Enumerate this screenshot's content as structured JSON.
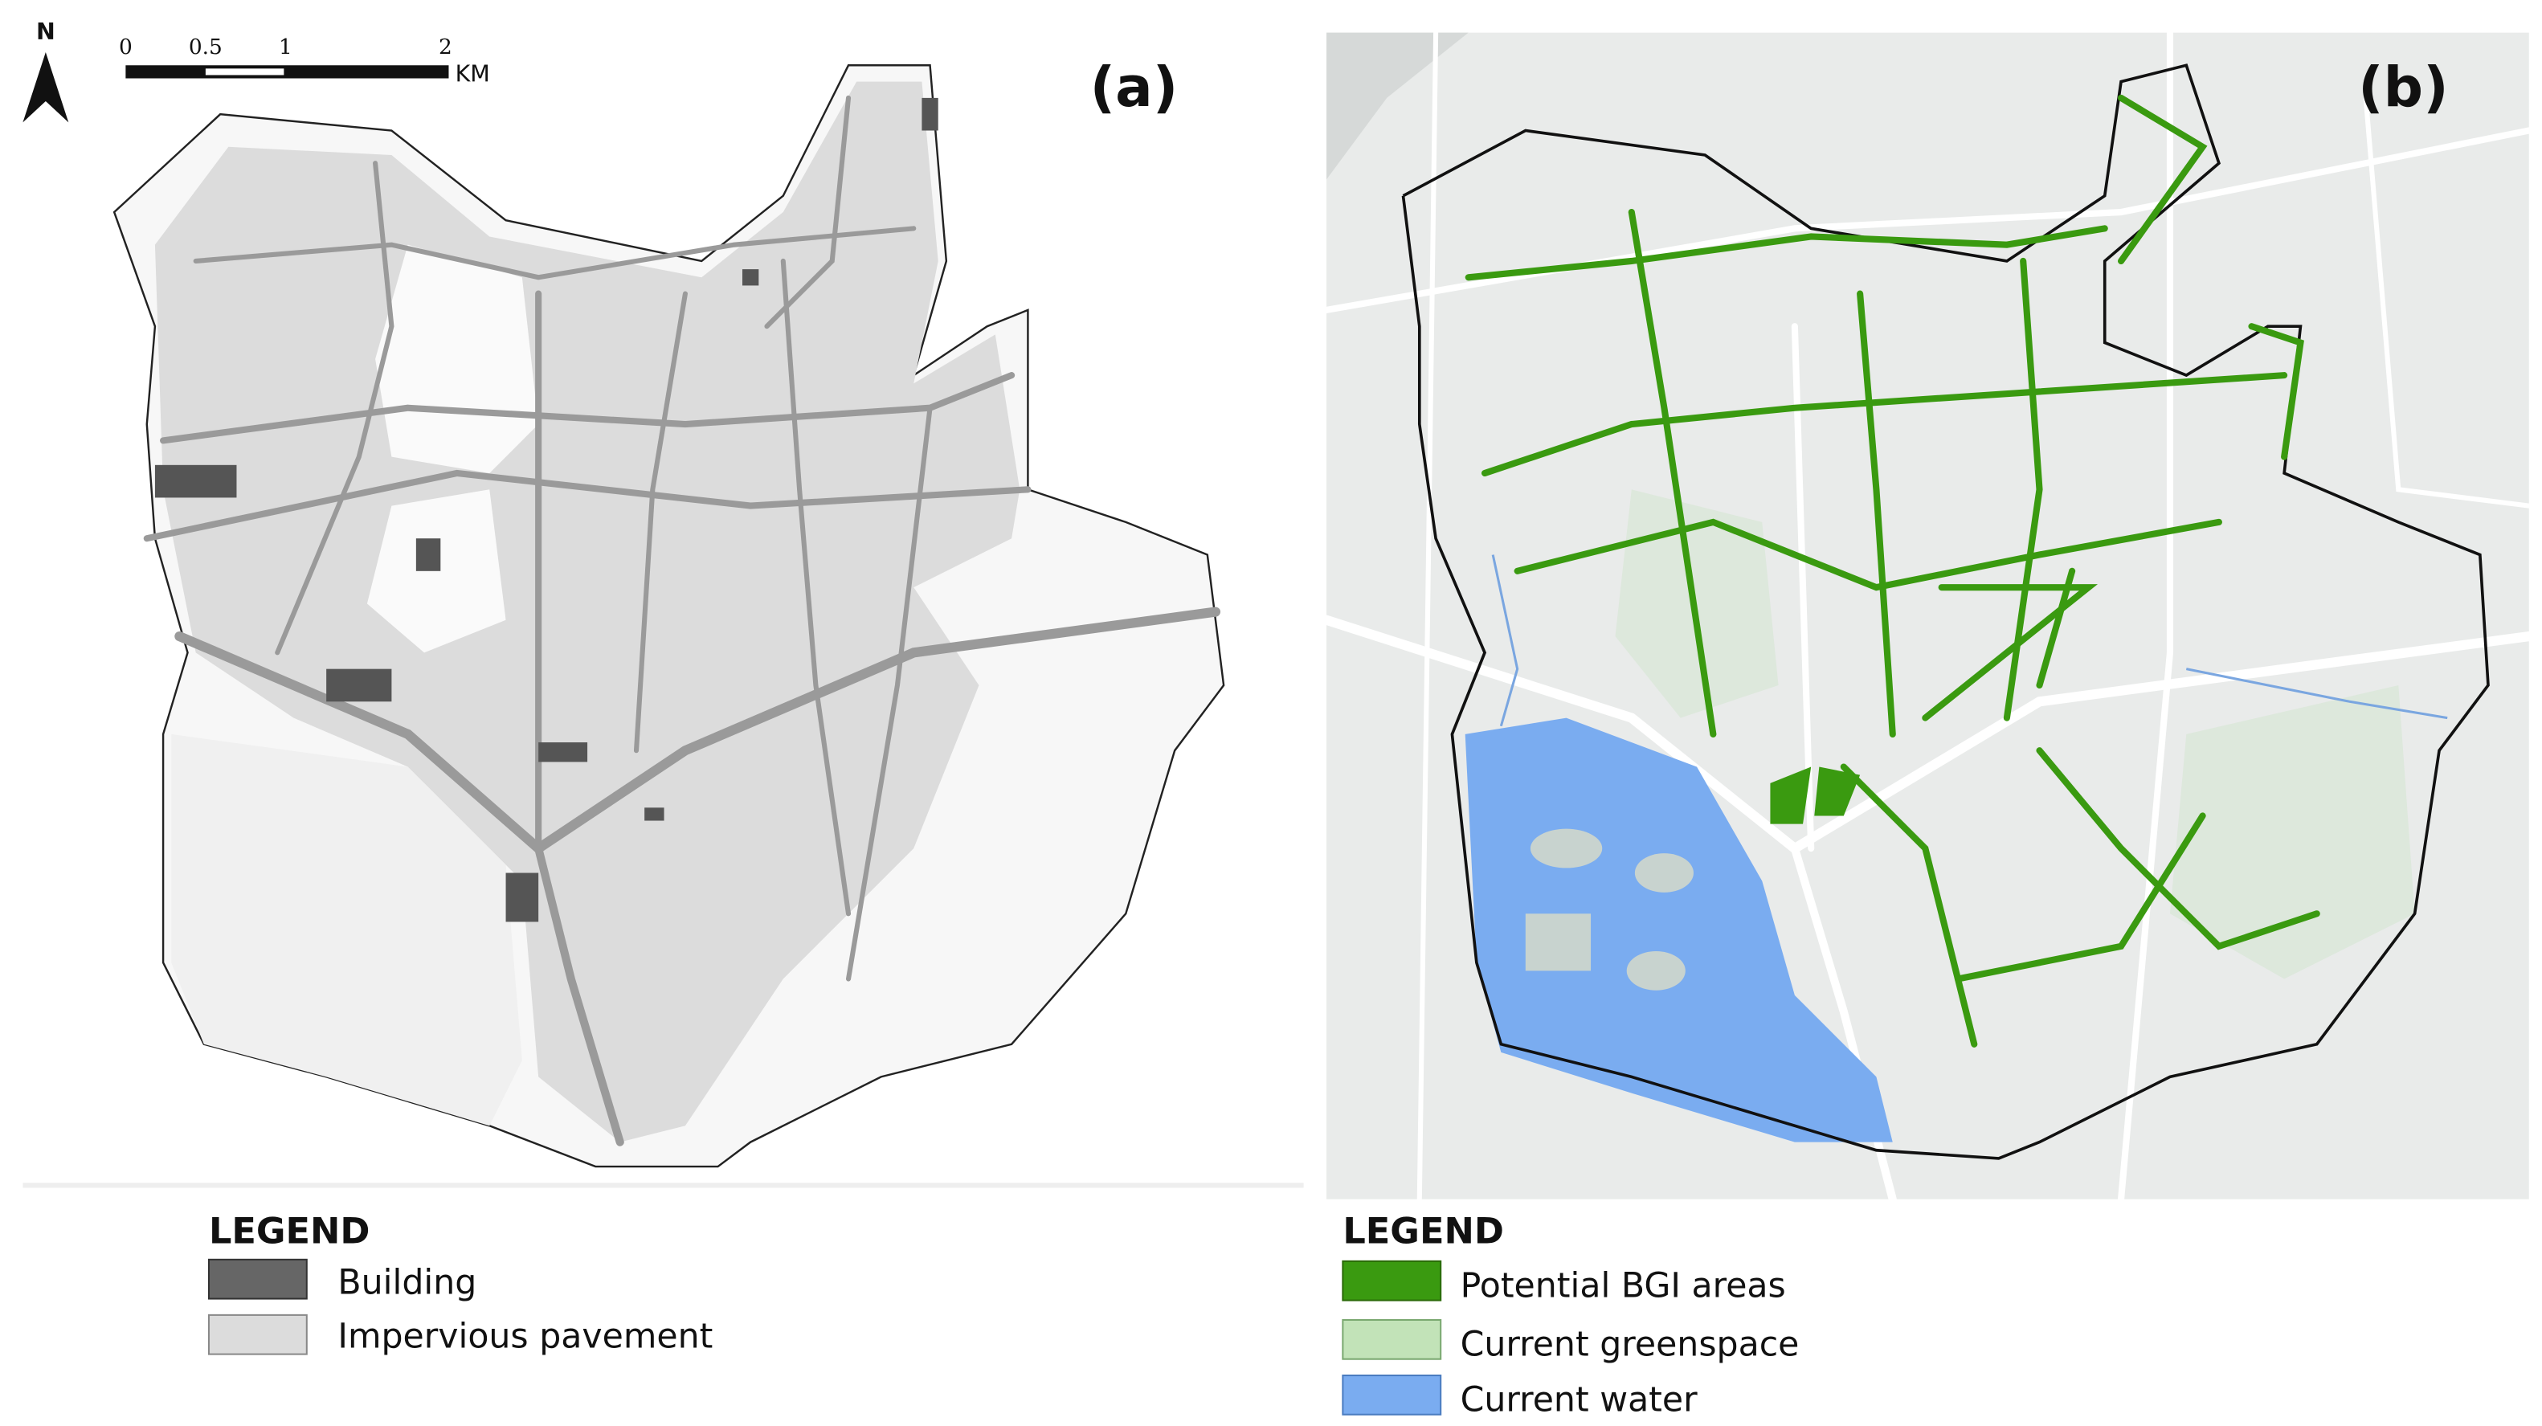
{
  "panel_a": {
    "label": "(a)",
    "north": "N",
    "scale_bar": {
      "ticks": [
        "0",
        "0.5",
        "1",
        "2"
      ],
      "unit": "KM"
    },
    "legend": {
      "title": "LEGEND",
      "items": [
        "Building",
        "Impervious pavement"
      ]
    }
  },
  "panel_b": {
    "label": "(b)",
    "legend": {
      "title": "LEGEND",
      "items": [
        "Potential BGI areas",
        "Current greenspace",
        "Current water"
      ]
    }
  }
}
